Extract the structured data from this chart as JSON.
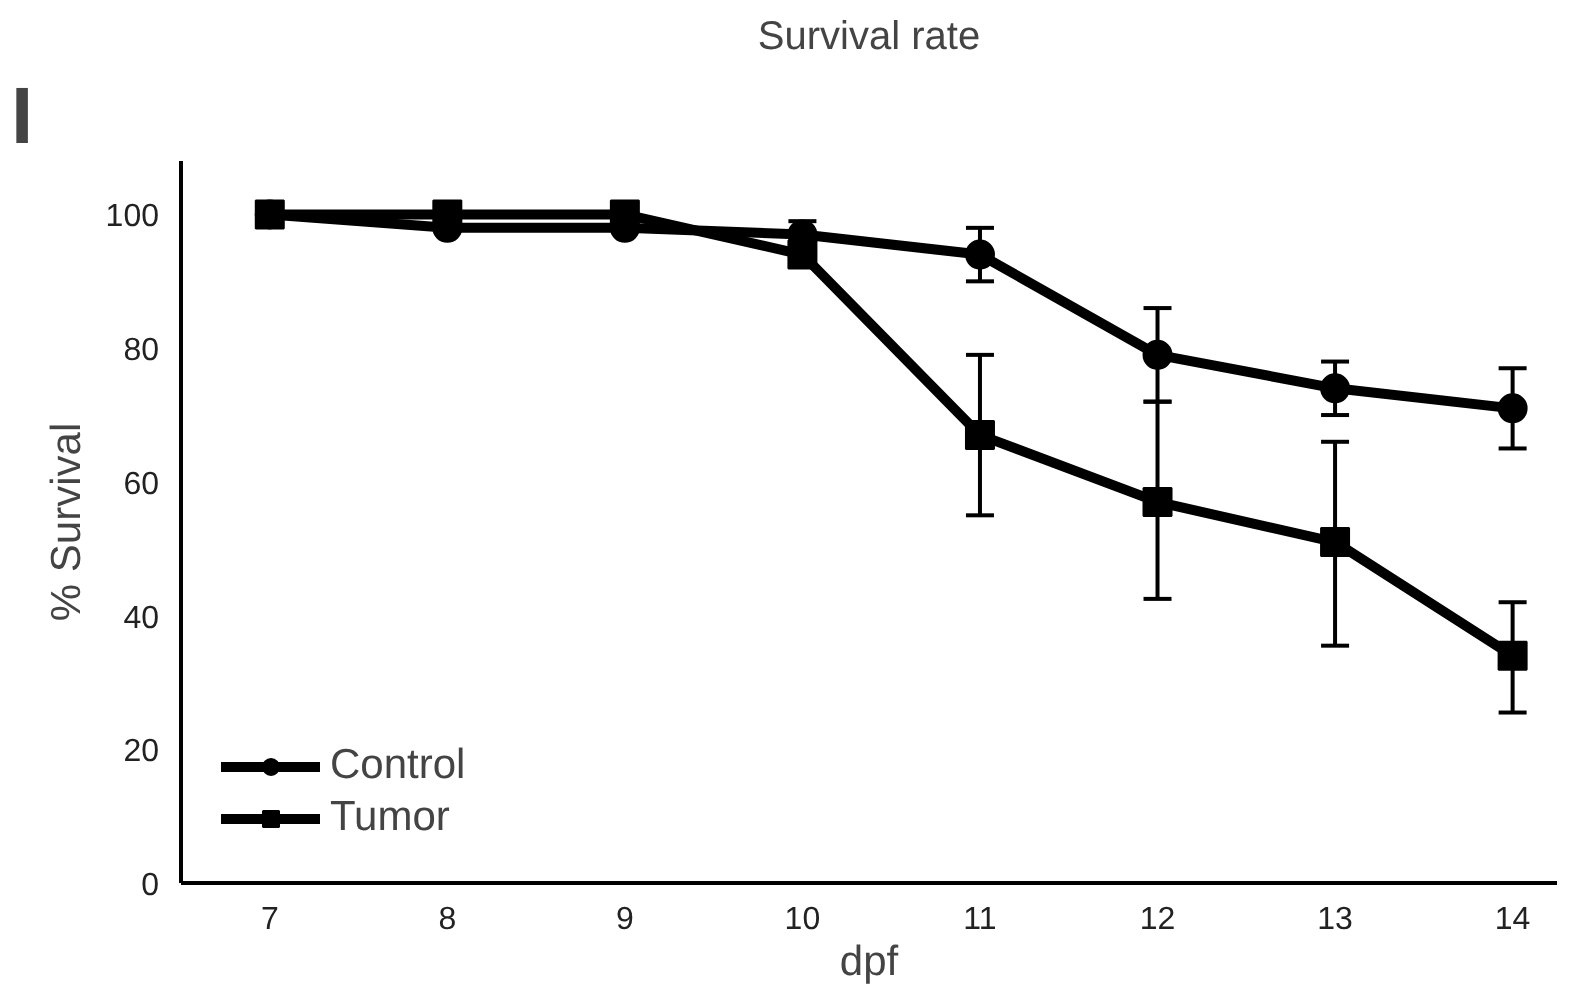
{
  "chart_data": {
    "type": "line",
    "title": "Survival rate",
    "xlabel": "dpf",
    "ylabel": "% Survival",
    "annotations": [
      "I"
    ],
    "x": [
      7,
      8,
      9,
      10,
      11,
      12,
      13,
      14
    ],
    "series": [
      {
        "name": "Control",
        "color": "#000000",
        "marker": "circle",
        "values": [
          100,
          98,
          98,
          97,
          94,
          79,
          74,
          71
        ],
        "errors": [
          null,
          null,
          null,
          [
            97,
            99
          ],
          [
            90,
            98
          ],
          [
            72,
            86
          ],
          [
            70,
            78
          ],
          [
            65,
            77
          ]
        ]
      },
      {
        "name": "Tumor",
        "color": "#000000",
        "marker": "square",
        "values": [
          100,
          100,
          100,
          94,
          67,
          57,
          51,
          34
        ],
        "errors": [
          null,
          null,
          null,
          null,
          [
            55,
            79
          ],
          [
            42.5,
            72
          ],
          [
            35.5,
            66
          ],
          [
            25.5,
            42
          ]
        ]
      }
    ],
    "xlim": [
      6.5,
      14.25
    ],
    "ylim": [
      0,
      108
    ],
    "xticks": [
      7,
      8,
      9,
      10,
      11,
      12,
      13,
      14
    ],
    "yticks": [
      0,
      20,
      40,
      60,
      80,
      100
    ],
    "grid": false,
    "legend": "bottom left",
    "line_style": "solid"
  }
}
